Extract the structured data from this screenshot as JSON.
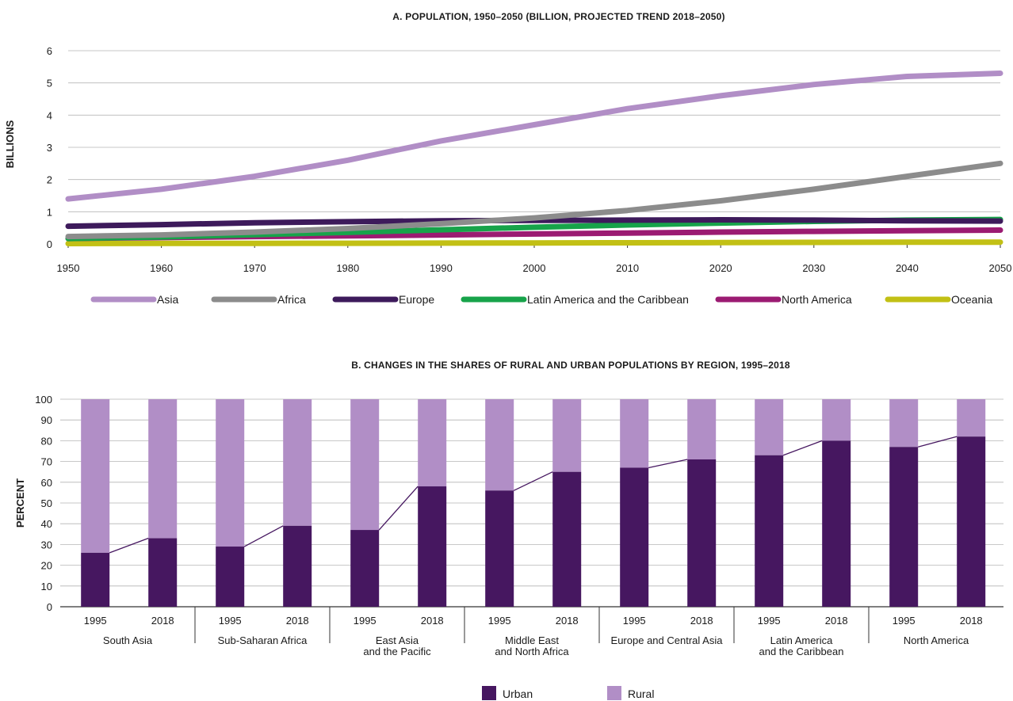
{
  "chart_data": [
    {
      "type": "line",
      "title": "A. POPULATION, 1950–2050 (BILLION, PROJECTED TREND 2018–2050)",
      "ylabel": "BILLIONS",
      "xlabel": "",
      "xlim": [
        1950,
        2050
      ],
      "ylim": [
        0,
        6
      ],
      "x_ticks": [
        "1950",
        "1960",
        "1970",
        "1980",
        "1990",
        "2000",
        "2010",
        "2020",
        "2030",
        "2040",
        "2050"
      ],
      "y_ticks": [
        "0",
        "1",
        "2",
        "3",
        "4",
        "5",
        "6"
      ],
      "grid": true,
      "legend_position": "bottom",
      "x": [
        1950,
        1960,
        1970,
        1980,
        1990,
        2000,
        2010,
        2020,
        2030,
        2040,
        2050
      ],
      "series": [
        {
          "name": "Asia",
          "color": "#b18ec6",
          "values": [
            1.4,
            1.7,
            2.1,
            2.6,
            3.2,
            3.7,
            4.2,
            4.6,
            4.95,
            5.2,
            5.3
          ]
        },
        {
          "name": "Africa",
          "color": "#8c8c8c",
          "values": [
            0.23,
            0.28,
            0.37,
            0.48,
            0.63,
            0.81,
            1.04,
            1.34,
            1.7,
            2.1,
            2.5
          ]
        },
        {
          "name": "Europe",
          "color": "#3d1a5b",
          "values": [
            0.55,
            0.6,
            0.66,
            0.69,
            0.72,
            0.73,
            0.74,
            0.75,
            0.74,
            0.72,
            0.71
          ]
        },
        {
          "name": "Latin America and the Caribbean",
          "color": "#17a34a",
          "values": [
            0.17,
            0.22,
            0.29,
            0.36,
            0.44,
            0.52,
            0.59,
            0.65,
            0.7,
            0.74,
            0.76
          ]
        },
        {
          "name": "North America",
          "color": "#9b1b72",
          "values": [
            0.17,
            0.2,
            0.23,
            0.25,
            0.28,
            0.31,
            0.34,
            0.37,
            0.39,
            0.41,
            0.43
          ]
        },
        {
          "name": "Oceania",
          "color": "#c2c015",
          "values": [
            0.013,
            0.016,
            0.02,
            0.023,
            0.027,
            0.031,
            0.037,
            0.043,
            0.048,
            0.053,
            0.057
          ]
        }
      ]
    },
    {
      "type": "bar",
      "title": "B. CHANGES IN THE SHARES OF RURAL AND URBAN POPULATIONS BY REGION, 1995–2018",
      "ylabel": "PERCENT",
      "xlabel": "",
      "ylim": [
        0,
        100
      ],
      "y_ticks": [
        "0",
        "10",
        "20",
        "30",
        "40",
        "50",
        "60",
        "70",
        "80",
        "90",
        "100"
      ],
      "grid": true,
      "stacked": true,
      "legend_position": "bottom",
      "groups": [
        {
          "region": [
            "South Asia"
          ],
          "years": [
            "1995",
            "2018"
          ],
          "urban": [
            26,
            33
          ]
        },
        {
          "region": [
            "Sub-Saharan Africa"
          ],
          "years": [
            "1995",
            "2018"
          ],
          "urban": [
            29,
            39
          ]
        },
        {
          "region": [
            "East Asia",
            "and the Pacific"
          ],
          "years": [
            "1995",
            "2018"
          ],
          "urban": [
            37,
            58
          ]
        },
        {
          "region": [
            "Middle East",
            "and North Africa"
          ],
          "years": [
            "1995",
            "2018"
          ],
          "urban": [
            56,
            65
          ]
        },
        {
          "region": [
            "Europe and Central Asia"
          ],
          "years": [
            "1995",
            "2018"
          ],
          "urban": [
            67,
            71
          ]
        },
        {
          "region": [
            "Latin America",
            "and the Caribbean"
          ],
          "years": [
            "1995",
            "2018"
          ],
          "urban": [
            73,
            80
          ]
        },
        {
          "region": [
            "North America"
          ],
          "years": [
            "1995",
            "2018"
          ],
          "urban": [
            77,
            82
          ]
        }
      ],
      "series": [
        {
          "name": "Urban",
          "color": "#461760"
        },
        {
          "name": "Rural",
          "color": "#b18ec6"
        }
      ]
    }
  ]
}
